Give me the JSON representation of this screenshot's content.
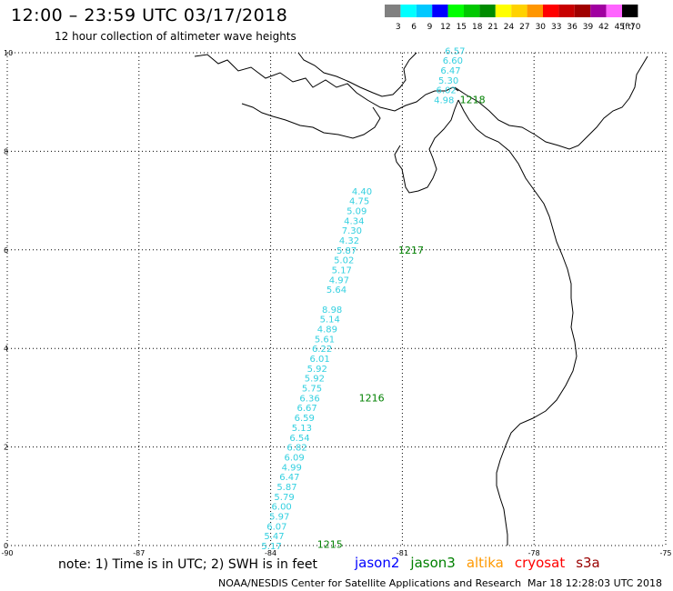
{
  "header": {
    "title": "12:00 – 23:59 UTC 03/17/2018",
    "subtitle": "12 hour collection of altimeter wave heights"
  },
  "color_scale": {
    "unit": "(ft)",
    "bins": [
      {
        "label": "3",
        "color": "#808080"
      },
      {
        "label": "6",
        "color": "#00ffff"
      },
      {
        "label": "9",
        "color": "#00c8ff"
      },
      {
        "label": "12",
        "color": "#0000ff"
      },
      {
        "label": "15",
        "color": "#00ff00"
      },
      {
        "label": "18",
        "color": "#00c800"
      },
      {
        "label": "21",
        "color": "#008c00"
      },
      {
        "label": "24",
        "color": "#ffff00"
      },
      {
        "label": "27",
        "color": "#ffd200"
      },
      {
        "label": "30",
        "color": "#ff9600"
      },
      {
        "label": "33",
        "color": "#ff0000"
      },
      {
        "label": "36",
        "color": "#c80000"
      },
      {
        "label": "39",
        "color": "#a00000"
      },
      {
        "label": "42",
        "color": "#a000a0"
      },
      {
        "label": "45",
        "color": "#ff64ff"
      },
      {
        "label": "70",
        "color": "#000000"
      }
    ]
  },
  "axes": {
    "lon_ticks": [
      "-90",
      "-87",
      "-84",
      "-81",
      "-78",
      "-75"
    ],
    "lat_ticks": [
      "0",
      "2",
      "4",
      "6",
      "8",
      "10"
    ],
    "lon_range": [
      -90,
      -75
    ],
    "lat_range": [
      0,
      10
    ]
  },
  "tracks": {
    "wave_color": "#33d0e0",
    "time_color": "#008000",
    "passes": [
      {
        "time": "1215",
        "time_pos": {
          "lon": -82.65,
          "lat": 0.03
        },
        "points": [
          {
            "v": "5.17",
            "lon": -83.98,
            "lat": 0.0
          },
          {
            "v": "5.47",
            "lon": -83.92,
            "lat": 0.2
          },
          {
            "v": "6.07",
            "lon": -83.86,
            "lat": 0.4
          },
          {
            "v": "5.97",
            "lon": -83.8,
            "lat": 0.6
          },
          {
            "v": "6.00",
            "lon": -83.75,
            "lat": 0.8
          },
          {
            "v": "5.79",
            "lon": -83.69,
            "lat": 1.0
          },
          {
            "v": "5.87",
            "lon": -83.63,
            "lat": 1.2
          },
          {
            "v": "6.47",
            "lon": -83.57,
            "lat": 1.4
          },
          {
            "v": "4.99",
            "lon": -83.52,
            "lat": 1.6
          },
          {
            "v": "6.09",
            "lon": -83.46,
            "lat": 1.8
          },
          {
            "v": "6.82",
            "lon": -83.4,
            "lat": 2.0
          }
        ]
      },
      {
        "time": "1216",
        "time_pos": {
          "lon": -81.7,
          "lat": 3.0
        },
        "points": [
          {
            "v": "6.54",
            "lon": -83.34,
            "lat": 2.2
          },
          {
            "v": "5.13",
            "lon": -83.29,
            "lat": 2.4
          },
          {
            "v": "6.59",
            "lon": -83.23,
            "lat": 2.6
          },
          {
            "v": "6.67",
            "lon": -83.17,
            "lat": 2.8
          },
          {
            "v": "6.36",
            "lon": -83.11,
            "lat": 3.0
          },
          {
            "v": "5.75",
            "lon": -83.06,
            "lat": 3.2
          },
          {
            "v": "5.92",
            "lon": -83.0,
            "lat": 3.4
          },
          {
            "v": "5.92",
            "lon": -82.94,
            "lat": 3.6
          },
          {
            "v": "6.01",
            "lon": -82.88,
            "lat": 3.8
          },
          {
            "v": "6.22",
            "lon": -82.83,
            "lat": 4.0
          },
          {
            "v": "5.61",
            "lon": -82.77,
            "lat": 4.2
          },
          {
            "v": "4.89",
            "lon": -82.71,
            "lat": 4.4
          },
          {
            "v": "5.14",
            "lon": -82.65,
            "lat": 4.6
          },
          {
            "v": "8.98",
            "lon": -82.6,
            "lat": 4.8
          }
        ]
      },
      {
        "time": "1217",
        "time_pos": {
          "lon": -80.8,
          "lat": 6.0
        },
        "points": [
          {
            "v": "5.64",
            "lon": -82.5,
            "lat": 5.2
          },
          {
            "v": "4.97",
            "lon": -82.44,
            "lat": 5.4
          },
          {
            "v": "5.17",
            "lon": -82.38,
            "lat": 5.6
          },
          {
            "v": "5.02",
            "lon": -82.33,
            "lat": 5.8
          },
          {
            "v": "5.87",
            "lon": -82.27,
            "lat": 6.0
          },
          {
            "v": "4.32",
            "lon": -82.21,
            "lat": 6.2
          },
          {
            "v": "7.30",
            "lon": -82.15,
            "lat": 6.4
          },
          {
            "v": "4.34",
            "lon": -82.1,
            "lat": 6.6
          },
          {
            "v": "5.09",
            "lon": -82.04,
            "lat": 6.8
          },
          {
            "v": "4.75",
            "lon": -81.98,
            "lat": 7.0
          },
          {
            "v": "4.40",
            "lon": -81.92,
            "lat": 7.2
          }
        ]
      },
      {
        "time": "1218",
        "time_pos": {
          "lon": -79.4,
          "lat": 9.05
        },
        "points": [
          {
            "v": "4.98",
            "lon": -80.05,
            "lat": 9.05
          },
          {
            "v": "6.02",
            "lon": -80.0,
            "lat": 9.25
          },
          {
            "v": "5.30",
            "lon": -79.95,
            "lat": 9.45
          },
          {
            "v": "6.47",
            "lon": -79.9,
            "lat": 9.65
          },
          {
            "v": "6.60",
            "lon": -79.85,
            "lat": 9.85
          },
          {
            "v": "6.57",
            "lon": -79.8,
            "lat": 10.05
          }
        ]
      }
    ]
  },
  "note": "note: 1) Time is in UTC; 2) SWH is in feet",
  "satellites": [
    {
      "name": "jason2",
      "color": "#0000ff"
    },
    {
      "name": "jason3",
      "color": "#008000"
    },
    {
      "name": "altika",
      "color": "#ff9900"
    },
    {
      "name": "cryosat",
      "color": "#ff0000"
    },
    {
      "name": "s3a",
      "color": "#990000"
    }
  ],
  "footer": {
    "credit": "NOAA/NESDIS Center for Satellite Applications and Research",
    "timestamp": "Mar 18 12:28:03 UTC 2018"
  }
}
